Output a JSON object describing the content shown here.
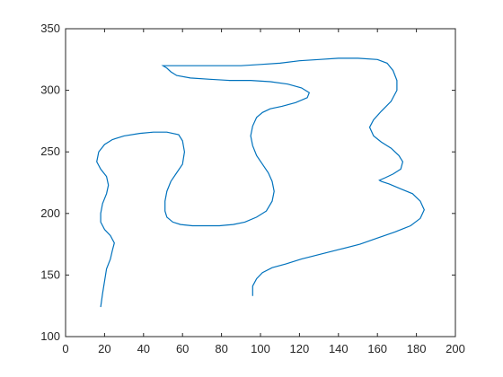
{
  "chart_data": {
    "type": "line",
    "title": "",
    "xlabel": "",
    "ylabel": "",
    "xlim": [
      0,
      200
    ],
    "ylim": [
      100,
      350
    ],
    "xticks": [
      0,
      20,
      40,
      60,
      80,
      100,
      120,
      140,
      160,
      180,
      200
    ],
    "yticks": [
      100,
      150,
      200,
      250,
      300,
      350
    ],
    "grid": false,
    "legend": "none",
    "series": [
      {
        "style": "curve",
        "color": "#0072BD",
        "x": [
          18,
          19,
          20,
          21,
          23,
          24,
          25,
          23,
          20,
          18,
          18,
          19,
          21,
          22,
          21,
          18,
          16,
          17,
          20,
          24,
          30,
          38,
          45,
          52,
          58,
          60,
          61,
          60,
          57,
          54,
          52,
          51,
          51,
          52,
          55,
          59,
          65,
          72,
          79,
          86,
          92,
          98,
          103,
          106,
          107,
          106,
          104,
          101,
          98,
          96,
          95,
          96,
          98,
          101,
          105,
          111,
          118,
          124,
          125,
          121,
          114,
          105,
          95,
          84,
          74,
          64,
          57,
          54,
          52,
          50,
          60,
          70,
          80,
          90,
          100,
          110,
          120,
          130,
          140,
          150,
          160,
          165,
          168,
          170,
          170,
          167,
          162,
          158,
          156,
          158,
          162,
          167,
          171,
          173,
          172,
          168,
          164,
          161,
          162,
          166,
          172,
          178,
          182,
          184,
          182,
          177,
          169,
          160,
          151,
          141,
          131,
          121,
          113,
          106,
          101,
          98,
          96,
          96
        ],
        "y": [
          124,
          135,
          145,
          155,
          163,
          170,
          176,
          182,
          187,
          193,
          200,
          208,
          216,
          223,
          230,
          236,
          242,
          250,
          256,
          260,
          263,
          265,
          266,
          266,
          264,
          259,
          250,
          240,
          233,
          226,
          218,
          210,
          202,
          197,
          193,
          191,
          190,
          190,
          190,
          191,
          193,
          197,
          202,
          210,
          218,
          226,
          233,
          240,
          247,
          255,
          263,
          271,
          278,
          282,
          285,
          287,
          290,
          294,
          298,
          302,
          305,
          307,
          308,
          308,
          309,
          310,
          312,
          315,
          318,
          320,
          320,
          320,
          320,
          320,
          321,
          322,
          324,
          325,
          326,
          326,
          325,
          322,
          316,
          308,
          300,
          291,
          283,
          276,
          270,
          263,
          258,
          253,
          247,
          242,
          236,
          232,
          229,
          227,
          226,
          224,
          220,
          216,
          210,
          203,
          196,
          190,
          185,
          180,
          175,
          171,
          167,
          163,
          159,
          156,
          152,
          147,
          141,
          133
        ]
      }
    ]
  }
}
